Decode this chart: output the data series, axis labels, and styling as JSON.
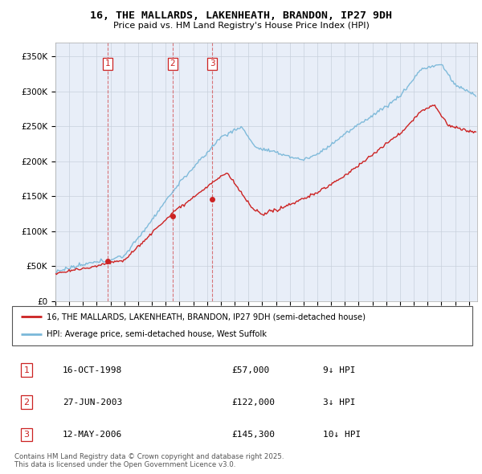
{
  "title": "16, THE MALLARDS, LAKENHEATH, BRANDON, IP27 9DH",
  "subtitle": "Price paid vs. HM Land Registry's House Price Index (HPI)",
  "ylabel_ticks": [
    "£0",
    "£50K",
    "£100K",
    "£150K",
    "£200K",
    "£250K",
    "£300K",
    "£350K"
  ],
  "ylim": [
    0,
    370000
  ],
  "xlim_start": 1995.0,
  "xlim_end": 2025.6,
  "hpi_color": "#7ab8d9",
  "price_color": "#cc2222",
  "sale_marker_color": "#cc2222",
  "background_color": "#e8eef8",
  "grid_color": "#c8d0dc",
  "legend_entries": [
    "16, THE MALLARDS, LAKENHEATH, BRANDON, IP27 9DH (semi-detached house)",
    "HPI: Average price, semi-detached house, West Suffolk"
  ],
  "sales": [
    {
      "num": 1,
      "date": "16-OCT-1998",
      "price": 57000,
      "year": 1998.79,
      "hpi_pct": "9↓ HPI"
    },
    {
      "num": 2,
      "date": "27-JUN-2003",
      "price": 122000,
      "year": 2003.49,
      "hpi_pct": "3↓ HPI"
    },
    {
      "num": 3,
      "date": "12-MAY-2006",
      "price": 145300,
      "year": 2006.37,
      "hpi_pct": "10↓ HPI"
    }
  ],
  "footer": "Contains HM Land Registry data © Crown copyright and database right 2025.\nThis data is licensed under the Open Government Licence v3.0."
}
